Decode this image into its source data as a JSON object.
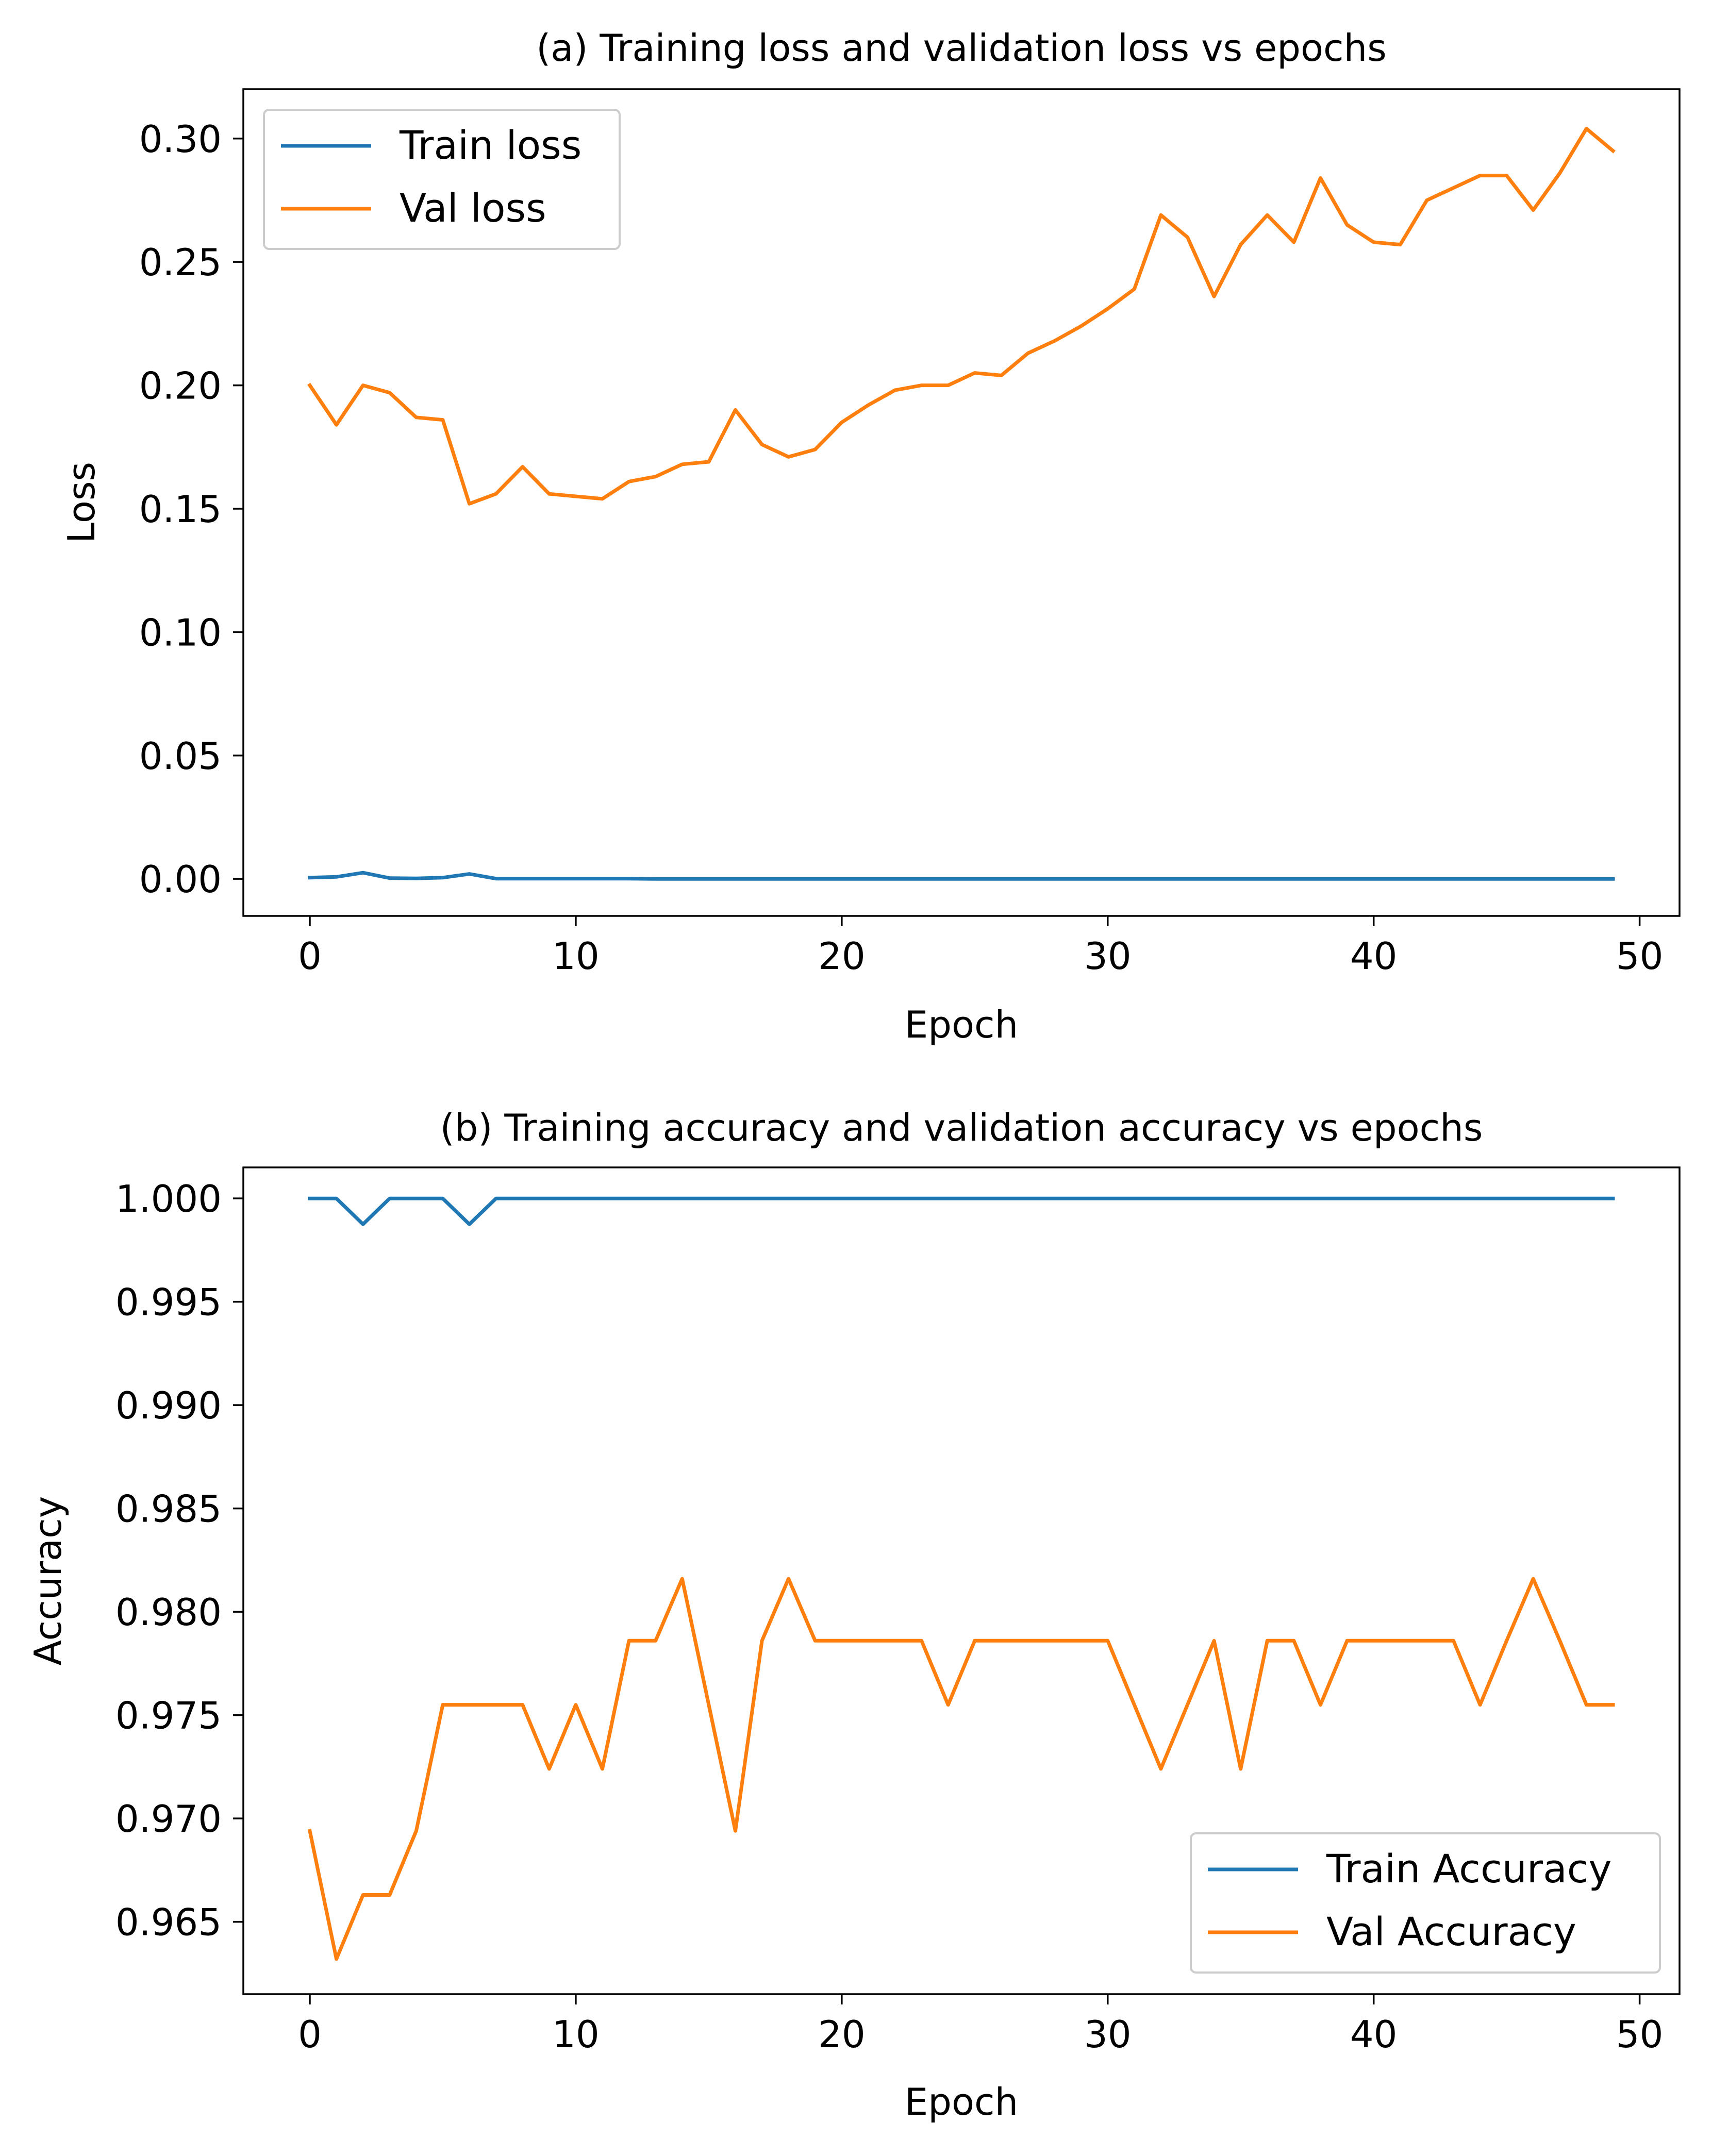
{
  "chart_data": [
    {
      "type": "line",
      "title": "(a) Training loss and validation loss vs epochs",
      "xlabel": "Epoch",
      "ylabel": "Loss",
      "xlim": [
        -2.5,
        51.5
      ],
      "ylim": [
        -0.015,
        0.32
      ],
      "xticks": [
        0,
        10,
        20,
        30,
        40,
        50
      ],
      "yticks": [
        0.0,
        0.05,
        0.1,
        0.15,
        0.2,
        0.25,
        0.3
      ],
      "ytick_labels": [
        "0.00",
        "0.05",
        "0.10",
        "0.15",
        "0.20",
        "0.25",
        "0.30"
      ],
      "legend_position": "upper-left",
      "grid": false,
      "x": [
        0,
        1,
        2,
        3,
        4,
        5,
        6,
        7,
        8,
        9,
        10,
        11,
        12,
        13,
        14,
        15,
        16,
        17,
        18,
        19,
        20,
        21,
        22,
        23,
        24,
        25,
        26,
        27,
        28,
        29,
        30,
        31,
        32,
        33,
        34,
        35,
        36,
        37,
        38,
        39,
        40,
        41,
        42,
        43,
        44,
        45,
        46,
        47,
        48,
        49
      ],
      "series": [
        {
          "name": "Train loss",
          "color": "#1f77b4",
          "values": [
            0.0005,
            0.0008,
            0.0025,
            0.0003,
            0.0002,
            0.0005,
            0.002,
            0.0001,
            0.0001,
            0.0001,
            0.0001,
            0.0001,
            0.0001,
            0,
            0,
            0,
            0,
            0,
            0,
            0,
            0,
            0,
            0,
            0,
            0,
            0,
            0,
            0,
            0,
            0,
            0,
            0,
            0,
            0,
            0,
            0,
            0,
            0,
            0,
            0,
            0,
            0,
            0,
            0,
            0,
            0,
            0,
            0,
            0,
            0
          ]
        },
        {
          "name": "Val loss",
          "color": "#ff7f0e",
          "values": [
            0.2,
            0.184,
            0.2,
            0.197,
            0.187,
            0.186,
            0.152,
            0.156,
            0.167,
            0.156,
            0.155,
            0.154,
            0.161,
            0.163,
            0.168,
            0.169,
            0.19,
            0.176,
            0.171,
            0.174,
            0.185,
            0.192,
            0.198,
            0.2,
            0.2,
            0.205,
            0.204,
            0.213,
            0.218,
            0.224,
            0.231,
            0.239,
            0.269,
            0.26,
            0.236,
            0.257,
            0.269,
            0.258,
            0.284,
            0.265,
            0.258,
            0.257,
            0.275,
            0.28,
            0.285,
            0.285,
            0.271,
            0.286,
            0.304,
            0.295
          ]
        }
      ]
    },
    {
      "type": "line",
      "title": "(b) Training accuracy and validation accuracy vs epochs",
      "xlabel": "Epoch",
      "ylabel": "Accuracy",
      "xlim": [
        -2.5,
        51.5
      ],
      "ylim": [
        0.9615,
        1.0015
      ],
      "xticks": [
        0,
        10,
        20,
        30,
        40,
        50
      ],
      "yticks": [
        0.965,
        0.97,
        0.975,
        0.98,
        0.985,
        0.99,
        0.995,
        1.0
      ],
      "ytick_labels": [
        "0.965",
        "0.970",
        "0.975",
        "0.980",
        "0.985",
        "0.990",
        "0.995",
        "1.000"
      ],
      "legend_position": "lower-right",
      "grid": false,
      "x": [
        0,
        1,
        2,
        3,
        4,
        5,
        6,
        7,
        8,
        9,
        10,
        11,
        12,
        13,
        14,
        15,
        16,
        17,
        18,
        19,
        20,
        21,
        22,
        23,
        24,
        25,
        26,
        27,
        28,
        29,
        30,
        31,
        32,
        33,
        34,
        35,
        36,
        37,
        38,
        39,
        40,
        41,
        42,
        43,
        44,
        45,
        46,
        47,
        48,
        49
      ],
      "series": [
        {
          "name": "Train Accuracy",
          "color": "#1f77b4",
          "values": [
            1.0,
            1.0,
            0.99875,
            1.0,
            1.0,
            1.0,
            0.99875,
            1.0,
            1.0,
            1.0,
            1.0,
            1.0,
            1.0,
            1.0,
            1.0,
            1.0,
            1.0,
            1.0,
            1.0,
            1.0,
            1.0,
            1.0,
            1.0,
            1.0,
            1.0,
            1.0,
            1.0,
            1.0,
            1.0,
            1.0,
            1.0,
            1.0,
            1.0,
            1.0,
            1.0,
            1.0,
            1.0,
            1.0,
            1.0,
            1.0,
            1.0,
            1.0,
            1.0,
            1.0,
            1.0,
            1.0,
            1.0,
            1.0,
            1.0,
            1.0
          ]
        },
        {
          "name": "Val Accuracy",
          "color": "#ff7f0e",
          "values": [
            0.9694,
            0.9632,
            0.9663,
            0.9663,
            0.9694,
            0.9755,
            0.9755,
            0.9755,
            0.9755,
            0.9724,
            0.9755,
            0.9724,
            0.9786,
            0.9786,
            0.9816,
            0.9755,
            0.9694,
            0.9786,
            0.9816,
            0.9786,
            0.9786,
            0.9786,
            0.9786,
            0.9786,
            0.9755,
            0.9786,
            0.9786,
            0.9786,
            0.9786,
            0.9786,
            0.9786,
            0.9755,
            0.9724,
            0.9755,
            0.9786,
            0.9724,
            0.9786,
            0.9786,
            0.9755,
            0.9786,
            0.9786,
            0.9786,
            0.9786,
            0.9786,
            0.9755,
            0.9786,
            0.9816,
            0.9786,
            0.9755,
            0.9755
          ]
        }
      ]
    }
  ]
}
